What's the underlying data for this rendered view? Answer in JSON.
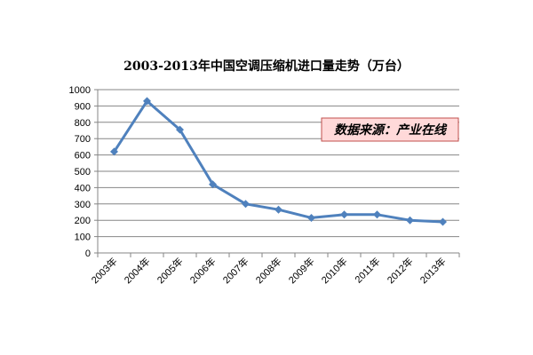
{
  "chart_data": {
    "type": "line",
    "title": "2003-2013年中国空调压缩机进口量走势（万台）",
    "categories": [
      "2003年",
      "2004年",
      "2005年",
      "2006年",
      "2007年",
      "2008年",
      "2009年",
      "2010年",
      "2011年",
      "2012年",
      "2013年"
    ],
    "series": [
      {
        "values": [
          620,
          930,
          755,
          420,
          300,
          265,
          215,
          235,
          235,
          200,
          190
        ]
      }
    ],
    "ylim": [
      0,
      1000
    ],
    "yticks": [
      0,
      100,
      200,
      300,
      400,
      500,
      600,
      700,
      800,
      900,
      1000
    ],
    "grid": true,
    "legend": "none",
    "line_color": "#4F81BD",
    "annotation": {
      "text": "数据来源：产业在线",
      "placement": "top-right",
      "fill_color": "#FFD9D9",
      "border_color": "#C0504D",
      "text_color": "#000000"
    }
  }
}
